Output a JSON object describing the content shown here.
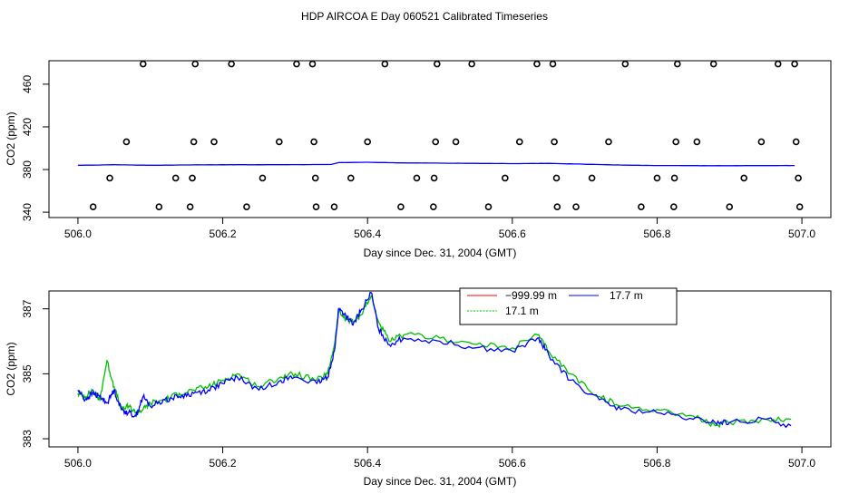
{
  "page": {
    "title": "HDP AIRCOA E  Day 060521  Calibrated Timeseries"
  },
  "chart_data": [
    {
      "type": "scatter",
      "xlabel": "Day since Dec. 31, 2004 (GMT)",
      "ylabel": "CO2 (ppm)",
      "xlim": [
        505.96,
        507.04
      ],
      "ylim": [
        335,
        482
      ],
      "xticks": [
        "506.0",
        "506.2",
        "506.4",
        "506.6",
        "506.8",
        "507.0"
      ],
      "xtick_values": [
        506.0,
        506.2,
        506.4,
        506.6,
        506.8,
        507.0
      ],
      "yticks": [
        "340",
        "380",
        "420",
        "460"
      ],
      "ytick_values": [
        340,
        380,
        420,
        460
      ],
      "series": [
        {
          "marker": "open-circle",
          "color": "#000000",
          "points": [
            [
              506.09,
              479
            ],
            [
              506.162,
              479
            ],
            [
              506.212,
              479
            ],
            [
              506.302,
              479
            ],
            [
              506.324,
              479
            ],
            [
              506.424,
              479
            ],
            [
              506.496,
              479
            ],
            [
              506.544,
              479
            ],
            [
              506.634,
              479
            ],
            [
              506.656,
              479
            ],
            [
              506.756,
              479
            ],
            [
              506.828,
              479
            ],
            [
              506.878,
              479
            ],
            [
              506.967,
              479
            ],
            [
              506.99,
              479
            ],
            [
              506.067,
              406
            ],
            [
              506.16,
              406
            ],
            [
              506.188,
              406
            ],
            [
              506.278,
              406
            ],
            [
              506.326,
              406
            ],
            [
              506.4,
              406
            ],
            [
              506.494,
              406
            ],
            [
              506.522,
              406
            ],
            [
              506.61,
              406
            ],
            [
              506.658,
              406
            ],
            [
              506.733,
              406
            ],
            [
              506.826,
              406
            ],
            [
              506.855,
              406
            ],
            [
              506.944,
              406
            ],
            [
              506.992,
              406
            ],
            [
              506.044,
              372
            ],
            [
              506.135,
              372
            ],
            [
              506.158,
              372
            ],
            [
              506.255,
              372
            ],
            [
              506.328,
              372
            ],
            [
              506.377,
              372
            ],
            [
              506.468,
              372
            ],
            [
              506.492,
              372
            ],
            [
              506.59,
              372
            ],
            [
              506.661,
              372
            ],
            [
              506.71,
              372
            ],
            [
              506.8,
              372
            ],
            [
              506.824,
              372
            ],
            [
              506.92,
              372
            ],
            [
              506.995,
              372
            ],
            [
              506.021,
              345
            ],
            [
              506.112,
              345
            ],
            [
              506.155,
              345
            ],
            [
              506.233,
              345
            ],
            [
              506.329,
              345
            ],
            [
              506.354,
              345
            ],
            [
              506.446,
              345
            ],
            [
              506.491,
              345
            ],
            [
              506.567,
              345
            ],
            [
              506.662,
              345
            ],
            [
              506.688,
              345
            ],
            [
              506.778,
              345
            ],
            [
              506.823,
              345
            ],
            [
              506.9,
              345
            ],
            [
              506.997,
              345
            ]
          ]
        },
        {
          "color": "#0000ff",
          "x": [
            506.0,
            506.05,
            506.1,
            506.15,
            506.2,
            506.25,
            506.3,
            506.35,
            506.36,
            506.4,
            506.45,
            506.5,
            506.55,
            506.6,
            506.65,
            506.7,
            506.75,
            506.8,
            506.85,
            506.9,
            506.95,
            506.99
          ],
          "y": [
            384,
            384.5,
            384,
            384.3,
            384.5,
            384.5,
            384.6,
            384.8,
            386.5,
            386.8,
            386.2,
            386,
            385.8,
            385.6,
            385.8,
            385,
            384.2,
            383.8,
            383.7,
            383.6,
            383.7,
            383.8
          ]
        }
      ]
    },
    {
      "type": "line",
      "xlabel": "Day since Dec. 31, 2004 (GMT)",
      "ylabel": "CO2 (ppm)",
      "xlim": [
        505.96,
        507.04
      ],
      "ylim": [
        382.75,
        387.55
      ],
      "xticks": [
        "506.0",
        "506.2",
        "506.4",
        "506.6",
        "506.8",
        "507.0"
      ],
      "xtick_values": [
        506.0,
        506.2,
        506.4,
        506.6,
        506.8,
        507.0
      ],
      "yticks": [
        "383",
        "385",
        "387"
      ],
      "ytick_values": [
        383,
        385,
        387
      ],
      "legend": {
        "placement": "top-center",
        "entries": [
          {
            "name": "−999.99 m",
            "color": "#ff0000"
          },
          {
            "name": "17.7 m",
            "color": "#0000ff"
          },
          {
            "name": "17.1 m",
            "color": "#00c000"
          }
        ]
      },
      "series": [
        {
          "name": "17.1 m",
          "color": "#00c000",
          "x": [
            506.0,
            506.01,
            506.02,
            506.03,
            506.04,
            506.05,
            506.06,
            506.07,
            506.08,
            506.09,
            506.1,
            506.12,
            506.14,
            506.16,
            506.18,
            506.2,
            506.22,
            506.25,
            506.28,
            506.3,
            506.33,
            506.345,
            506.355,
            506.36,
            506.37,
            506.38,
            506.39,
            506.405,
            506.415,
            506.43,
            506.45,
            506.5,
            506.55,
            506.6,
            506.635,
            506.65,
            506.68,
            506.72,
            506.75,
            506.8,
            506.85,
            506.88,
            506.9,
            506.95,
            506.985
          ],
          "y": [
            384.4,
            384.3,
            384.5,
            384.2,
            385.4,
            384.6,
            383.9,
            384.0,
            383.8,
            383.9,
            384.1,
            384.2,
            384.4,
            384.5,
            384.6,
            384.8,
            385.0,
            384.6,
            384.9,
            385.0,
            384.8,
            385.0,
            386.0,
            386.9,
            386.7,
            386.6,
            386.8,
            387.4,
            386.6,
            386.0,
            386.2,
            386.1,
            385.9,
            385.8,
            386.2,
            385.7,
            385.0,
            384.3,
            384.0,
            383.9,
            383.7,
            383.4,
            383.5,
            383.6,
            383.6
          ]
        },
        {
          "name": "17.7 m",
          "color": "#0000ff",
          "x": [
            506.0,
            506.01,
            506.02,
            506.03,
            506.04,
            506.05,
            506.06,
            506.07,
            506.08,
            506.09,
            506.1,
            506.12,
            506.14,
            506.16,
            506.18,
            506.2,
            506.22,
            506.25,
            506.28,
            506.3,
            506.33,
            506.345,
            506.355,
            506.36,
            506.37,
            506.38,
            506.39,
            506.405,
            506.415,
            506.43,
            506.45,
            506.5,
            506.55,
            506.6,
            506.635,
            506.65,
            506.68,
            506.72,
            506.75,
            506.8,
            506.85,
            506.88,
            506.9,
            506.95,
            506.985
          ],
          "y": [
            384.5,
            384.2,
            384.4,
            384.3,
            384.1,
            384.5,
            383.9,
            383.8,
            383.7,
            384.3,
            384.0,
            384.2,
            384.3,
            384.4,
            384.5,
            384.7,
            384.9,
            384.5,
            384.8,
            384.9,
            384.7,
            384.9,
            385.8,
            387.0,
            386.8,
            386.5,
            386.9,
            387.5,
            386.4,
            385.9,
            386.1,
            386.0,
            385.8,
            385.7,
            386.1,
            385.6,
            384.8,
            384.2,
            383.9,
            383.8,
            383.6,
            383.5,
            383.5,
            383.6,
            383.4
          ]
        }
      ]
    }
  ]
}
